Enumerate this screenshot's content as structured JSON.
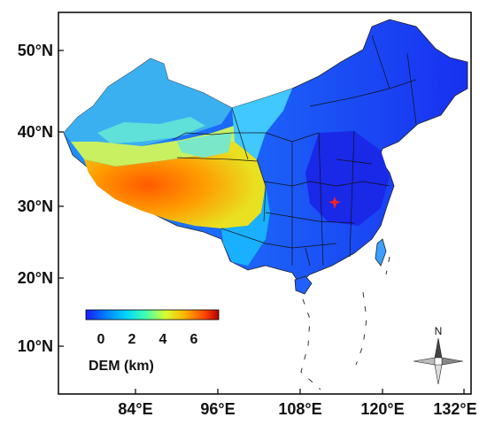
{
  "map": {
    "x_ticks": [
      "84°E",
      "96°E",
      "108°E",
      "120°E",
      "132°E"
    ],
    "y_ticks": [
      "50°N",
      "40°N",
      "30°N",
      "20°N",
      "10°N"
    ],
    "colorbar": {
      "title": "DEM (km)",
      "tick_labels": [
        "0",
        "2",
        "4",
        "6"
      ],
      "colors": [
        "#1a1aff",
        "#0080ff",
        "#00d4ff",
        "#40ffb0",
        "#d8ff30",
        "#ffb000",
        "#ff4000",
        "#b00000"
      ]
    },
    "compass_label": "N",
    "marker_color": "#ff2020"
  }
}
